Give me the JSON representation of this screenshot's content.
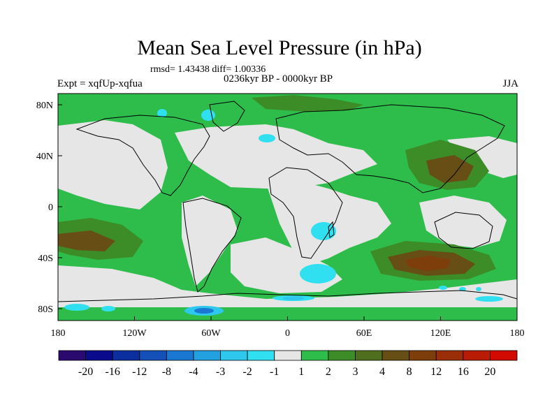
{
  "title": "Mean Sea Level Pressure (in hPa)",
  "stats_line": "rmsd= 1.43438 diff= 1.00336",
  "period": "0236kyr BP - 0000kyr BP",
  "experiment": "Expt = xqfUp-xqfua",
  "season": "JJA",
  "axes": {
    "y_labels": [
      "80N",
      "40N",
      "0",
      "40S",
      "80S"
    ],
    "x_labels": [
      "180",
      "120W",
      "60W",
      "0",
      "60E",
      "120E",
      "180"
    ]
  },
  "colorbar": {
    "colors": [
      "#2a0a6e",
      "#0a0a8c",
      "#0c2fa0",
      "#1450b8",
      "#1a78d2",
      "#22a0e0",
      "#2ec8ee",
      "#30e0f0",
      "#e6e6e6",
      "#2ebd4a",
      "#3c8c28",
      "#4f6e1e",
      "#664e14",
      "#7e3e0c",
      "#9a2e08",
      "#b81c04",
      "#d20a00"
    ],
    "labels": [
      "-20",
      "-16",
      "-12",
      "-8",
      "-4",
      "-3",
      "-2",
      "-1",
      "1",
      "2",
      "3",
      "4",
      "8",
      "12",
      "16",
      "20"
    ]
  },
  "field_colors": {
    "neutral": "#e6e6e6",
    "plus2": "#2ebd4a",
    "plus3": "#3c8c28",
    "plus4": "#664e14",
    "plus8": "#7e3e0c",
    "minus1": "#30e0f0",
    "minus2": "#2ec8ee",
    "minus4": "#1a78d2",
    "coast": "#000000"
  }
}
